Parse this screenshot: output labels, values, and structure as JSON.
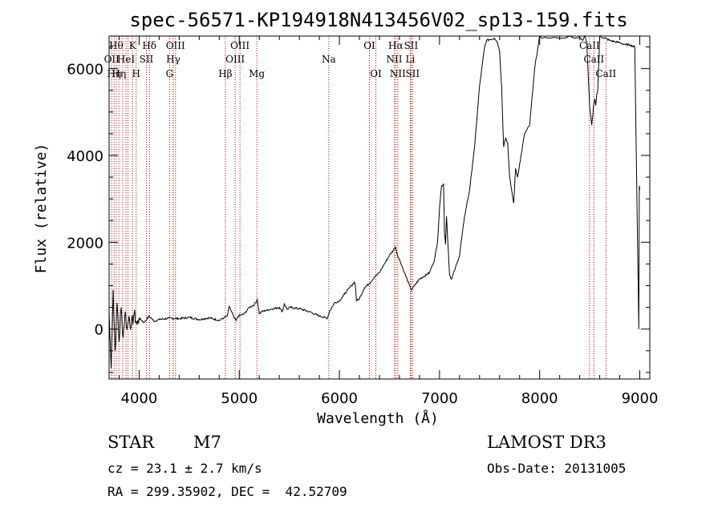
{
  "chart_data": {
    "type": "line",
    "title": "spec-56571-KP194918N413456V02_sp13-159.fits",
    "xlabel": "Wavelength (Å)",
    "ylabel": "Flux (relative)",
    "xlim": [
      3700,
      9100
    ],
    "ylim": [
      -1150,
      6750
    ],
    "xticks": [
      4000,
      5000,
      6000,
      7000,
      8000,
      9000
    ],
    "yticks": [
      0,
      2000,
      4000,
      6000
    ],
    "series": [
      {
        "name": "flux",
        "x": [
          3700,
          3720,
          3740,
          3760,
          3780,
          3800,
          3820,
          3840,
          3860,
          3880,
          3900,
          3920,
          3950,
          3980,
          4000,
          4050,
          4100,
          4150,
          4200,
          4300,
          4400,
          4500,
          4600,
          4700,
          4800,
          4880,
          4900,
          4950,
          4970,
          4990,
          5050,
          5100,
          5150,
          5180,
          5200,
          5220,
          5300,
          5400,
          5430,
          5450,
          5480,
          5500,
          5600,
          5700,
          5800,
          5880,
          5900,
          5950,
          6000,
          6050,
          6100,
          6120,
          6150,
          6160,
          6170,
          6200,
          6250,
          6300,
          6350,
          6400,
          6450,
          6500,
          6550,
          6560,
          6580,
          6600,
          6650,
          6700,
          6720,
          6750,
          6800,
          6900,
          6950,
          6980,
          7000,
          7020,
          7040,
          7050,
          7060,
          7070,
          7100,
          7120,
          7150,
          7200,
          7250,
          7300,
          7350,
          7400,
          7450,
          7470,
          7550,
          7580,
          7600,
          7620,
          7640,
          7660,
          7680,
          7700,
          7720,
          7740,
          7760,
          7780,
          7800,
          7850,
          7900,
          7950,
          8000,
          8020,
          8050,
          8100,
          8150,
          8200,
          8250,
          8300,
          8350,
          8400,
          8430,
          8450,
          8470,
          8500,
          8520,
          8530,
          8540,
          8550,
          8560,
          8570,
          8580,
          8600,
          8650,
          8700,
          8750,
          8800,
          8850,
          8900,
          8950,
          8990,
          8995,
          9000
        ],
        "values": [
          400,
          -900,
          900,
          -500,
          600,
          -300,
          500,
          -200,
          400,
          0,
          300,
          50,
          350,
          100,
          250,
          150,
          300,
          180,
          220,
          250,
          240,
          270,
          220,
          260,
          200,
          300,
          520,
          250,
          200,
          300,
          350,
          500,
          560,
          680,
          350,
          400,
          450,
          500,
          400,
          580,
          450,
          500,
          470,
          400,
          300,
          250,
          400,
          600,
          650,
          800,
          950,
          1000,
          1080,
          1000,
          650,
          700,
          950,
          1050,
          1200,
          1300,
          1500,
          1700,
          1850,
          1900,
          1700,
          1600,
          1300,
          1000,
          900,
          1000,
          1150,
          1300,
          1600,
          2000,
          2800,
          3300,
          3350,
          2200,
          1950,
          2600,
          1250,
          1150,
          1350,
          1700,
          2600,
          3200,
          4200,
          5600,
          6500,
          6650,
          6700,
          6600,
          6400,
          5600,
          4200,
          4400,
          4300,
          3500,
          3200,
          2900,
          3700,
          3500,
          3800,
          4500,
          4700,
          6000,
          6750,
          6700,
          6720,
          6700,
          6720,
          6700,
          6700,
          6750,
          6700,
          6720,
          6650,
          6750,
          6600,
          5100,
          4700,
          4900,
          5200,
          5300,
          5150,
          5400,
          5500,
          6750,
          6700,
          6650,
          6620,
          6600,
          6550,
          6550,
          6500,
          0,
          3300,
          3200
        ]
      }
    ],
    "emission_lines": [
      {
        "wl": 3726,
        "row": 1,
        "label": "OII"
      },
      {
        "wl": 3750,
        "row": 2,
        "label": "Hη"
      },
      {
        "wl": 3771,
        "row": 0,
        "label": "Hθ"
      },
      {
        "wl": 3798,
        "row": 2,
        "label": "Hη"
      },
      {
        "wl": 3835,
        "row": 1,
        "label": ""
      },
      {
        "wl": 3869,
        "row": 1,
        "label": "HeI"
      },
      {
        "wl": 3889,
        "row": 1,
        "label": ""
      },
      {
        "wl": 3934,
        "row": 0,
        "label": "K"
      },
      {
        "wl": 3970,
        "row": 2,
        "label": "H"
      },
      {
        "wl": 4072,
        "row": 1,
        "label": "SII"
      },
      {
        "wl": 4102,
        "row": 0,
        "label": "Hδ"
      },
      {
        "wl": 4304,
        "row": 2,
        "label": "G"
      },
      {
        "wl": 4341,
        "row": 1,
        "label": "Hγ"
      },
      {
        "wl": 4363,
        "row": 0,
        "label": "OIII"
      },
      {
        "wl": 4861,
        "row": 2,
        "label": "Hβ"
      },
      {
        "wl": 4959,
        "row": 1,
        "label": "OIII"
      },
      {
        "wl": 5007,
        "row": 0,
        "label": "OIII"
      },
      {
        "wl": 5175,
        "row": 2,
        "label": "Mg"
      },
      {
        "wl": 5894,
        "row": 1,
        "label": "Na"
      },
      {
        "wl": 6300,
        "row": 0,
        "label": "OI"
      },
      {
        "wl": 6364,
        "row": 2,
        "label": "OI"
      },
      {
        "wl": 6548,
        "row": 1,
        "label": "NII"
      },
      {
        "wl": 6563,
        "row": 0,
        "label": "Hα"
      },
      {
        "wl": 6583,
        "row": 2,
        "label": "NII"
      },
      {
        "wl": 6708,
        "row": 1,
        "label": "Li"
      },
      {
        "wl": 6716,
        "row": 0,
        "label": "SII"
      },
      {
        "wl": 6731,
        "row": 2,
        "label": "SII"
      },
      {
        "wl": 8498,
        "row": 0,
        "label": "CaII"
      },
      {
        "wl": 8542,
        "row": 1,
        "label": "CaII"
      },
      {
        "wl": 8662,
        "row": 2,
        "label": "CaII"
      }
    ]
  },
  "info": {
    "object_class": "STAR",
    "subclass": "M7",
    "survey": "LAMOST DR3",
    "redshift": "cz = 23.1 ± 2.7 km/s",
    "obs_date": "Obs-Date: 20131005",
    "coords": "RA = 299.35902, DEC =  42.52709"
  }
}
